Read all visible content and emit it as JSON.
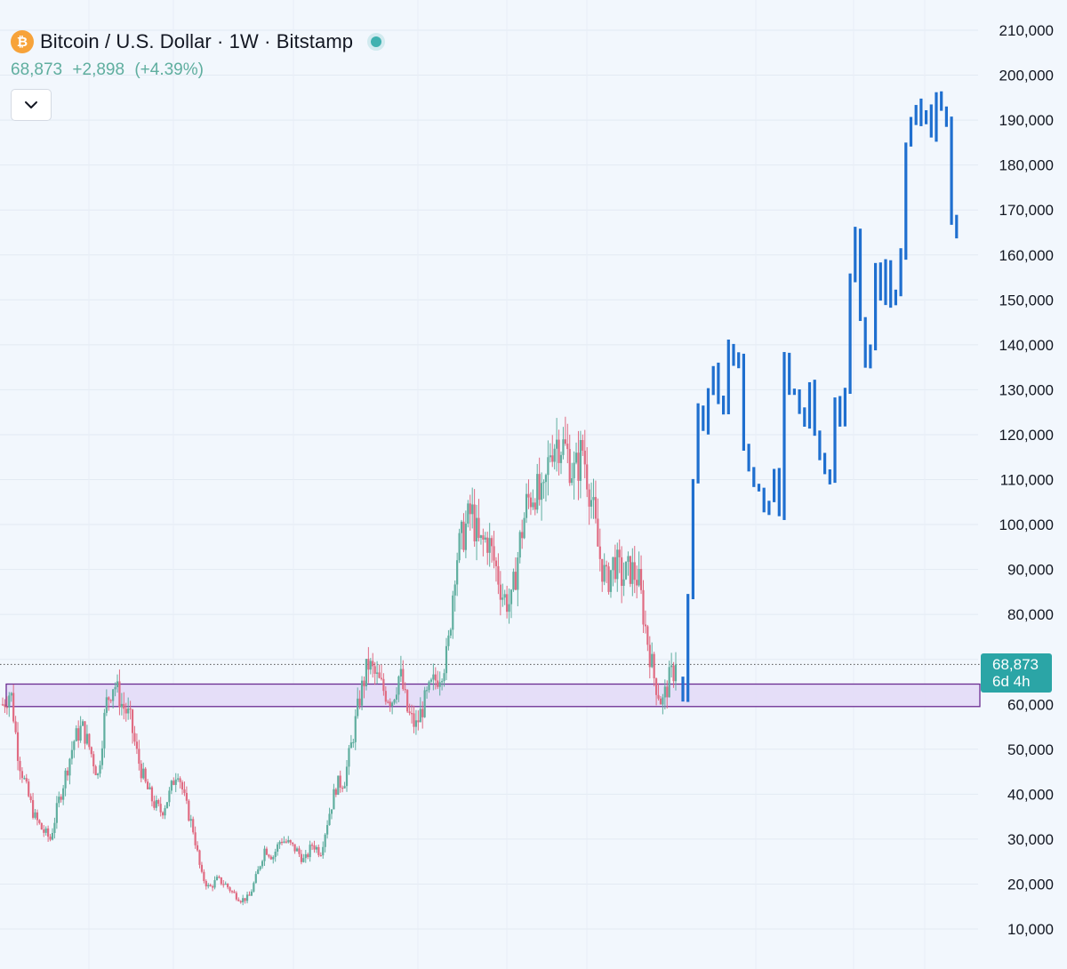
{
  "legend": {
    "symbol_icon": "bitcoin-icon",
    "title": "Bitcoin / U.S. Dollar · 1W · Bitstamp",
    "last_price": "68,873",
    "change": "+2,898",
    "change_pct": "(+4.39%)",
    "collapse_icon": "chevron-down-icon"
  },
  "price_tag": {
    "price": "68,873",
    "countdown": "6d 4h"
  },
  "colors": {
    "background": "#f2f7fd",
    "up": "#5fae9f",
    "down": "#e06b82",
    "projection": "#1f6fcf",
    "zone_fill": "#e3d9f7",
    "zone_border": "#6a2c91",
    "tag": "#2ba5a6",
    "coin": "#f7a33a"
  },
  "chart_data": {
    "type": "candlestick",
    "timeframe": "1W",
    "y_axis": {
      "ticks": [
        "210,000",
        "200,000",
        "190,000",
        "180,000",
        "170,000",
        "160,000",
        "150,000",
        "140,000",
        "130,000",
        "120,000",
        "110,000",
        "100,000",
        "90,000",
        "80,000",
        "70,000",
        "60,000",
        "50,000",
        "40,000",
        "30,000",
        "20,000",
        "10,000"
      ],
      "ylim": [
        10000,
        210000
      ]
    },
    "last_price": 68873,
    "support_zone": [
      59500,
      64500
    ],
    "historical_close_path": [
      60000,
      63000,
      48000,
      41000,
      35000,
      32000,
      30000,
      38000,
      45000,
      52000,
      55000,
      50000,
      44000,
      60000,
      65000,
      60000,
      57000,
      48000,
      42000,
      38000,
      36000,
      40000,
      46000,
      38000,
      32000,
      22000,
      19000,
      21000,
      20000,
      18000,
      16500,
      17000,
      22000,
      28000,
      26000,
      30000,
      29000,
      27500,
      25000,
      29000,
      27000,
      35000,
      42000,
      43000,
      52000,
      62000,
      69000,
      66000,
      63000,
      61000,
      67000,
      58000,
      55000,
      60000,
      64000,
      67000,
      71000,
      92000,
      98000,
      103000,
      95000,
      97000,
      91000,
      84000,
      82000,
      95000,
      105000,
      108000,
      104000,
      118000,
      119000,
      116000,
      111000,
      117000,
      107000,
      94000,
      87000,
      92000,
      88000,
      90000,
      88000,
      76000,
      66000,
      60000,
      66000,
      68873
    ],
    "projection_path": [
      61000,
      84000,
      110000,
      126000,
      121000,
      130000,
      135000,
      128000,
      125000,
      140000,
      136000,
      138000,
      117000,
      112000,
      109000,
      108000,
      103000,
      105000,
      112000,
      102000,
      138000,
      129000,
      130000,
      125000,
      122000,
      131000,
      120000,
      115000,
      112000,
      110000,
      128000,
      123000,
      130000,
      155000,
      165000,
      146000,
      135000,
      140000,
      158000,
      150000,
      158000,
      149000,
      152000,
      160000,
      185000,
      190000,
      193000,
      190000,
      192000,
      187000,
      195000,
      193000,
      190000,
      168000,
      165000
    ]
  }
}
